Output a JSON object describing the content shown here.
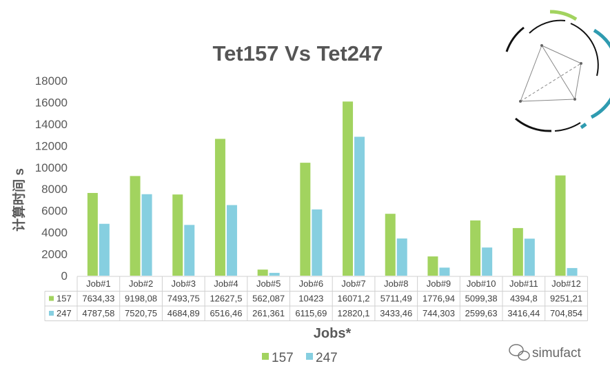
{
  "chart_data": {
    "type": "bar",
    "title": "Tet157 Vs Tet247",
    "xlabel": "Jobs*",
    "ylabel": "计算时间 s",
    "ylim": [
      0,
      18000
    ],
    "yticks": [
      0,
      2000,
      4000,
      6000,
      8000,
      10000,
      12000,
      14000,
      16000,
      18000
    ],
    "categories": [
      "Job#1",
      "Job#2",
      "Job#3",
      "Job#4",
      "Job#5",
      "Job#6",
      "Job#7",
      "Job#8",
      "Job#9",
      "Job#10",
      "Job#11",
      "Job#12"
    ],
    "series": [
      {
        "name": "157",
        "color": "#a2d35f",
        "values": [
          7634.33,
          9198.08,
          7493.75,
          12627.5,
          562.087,
          10423,
          16071.2,
          5711.49,
          1776.94,
          5099.38,
          4394.8,
          9251.21
        ],
        "labels": [
          "7634,33",
          "9198,08",
          "7493,75",
          "12627,5",
          "562,087",
          "10423",
          "16071,2",
          "5711,49",
          "1776,94",
          "5099,38",
          "4394,8",
          "9251,21"
        ]
      },
      {
        "name": "247",
        "color": "#86cfe0",
        "values": [
          4787.58,
          7520.75,
          4684.89,
          6516.46,
          261.361,
          6115.69,
          12820.1,
          3433.46,
          744.303,
          2599.63,
          3416.44,
          704.854
        ],
        "labels": [
          "4787,58",
          "7520,75",
          "4684,89",
          "6516,46",
          "261,361",
          "6115,69",
          "12820,1",
          "3433,46",
          "744,303",
          "2599,63",
          "3416,44",
          "704,854"
        ]
      }
    ],
    "grid": false,
    "legend": "bottom",
    "data_table": true
  },
  "watermark": {
    "text": "simufact",
    "icon": "wechat-icon"
  }
}
